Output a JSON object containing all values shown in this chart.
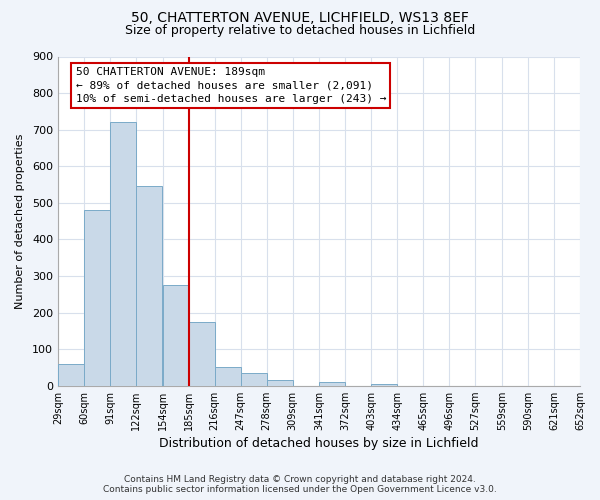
{
  "title1": "50, CHATTERTON AVENUE, LICHFIELD, WS13 8EF",
  "title2": "Size of property relative to detached houses in Lichfield",
  "xlabel": "Distribution of detached houses by size in Lichfield",
  "ylabel": "Number of detached properties",
  "footnote1": "Contains HM Land Registry data © Crown copyright and database right 2024.",
  "footnote2": "Contains public sector information licensed under the Open Government Licence v3.0.",
  "bar_left_edges": [
    29,
    60,
    91,
    122,
    154,
    185,
    216,
    247,
    278,
    309,
    341,
    372,
    403,
    434,
    465,
    496,
    527,
    559,
    590,
    621
  ],
  "bar_heights": [
    60,
    480,
    720,
    545,
    275,
    175,
    50,
    35,
    15,
    0,
    10,
    0,
    5,
    0,
    0,
    0,
    0,
    0,
    0,
    0
  ],
  "bin_width": 31,
  "bar_color": "#c9d9e8",
  "bar_edgecolor": "#7aaac8",
  "xtick_labels": [
    "29sqm",
    "60sqm",
    "91sqm",
    "122sqm",
    "154sqm",
    "185sqm",
    "216sqm",
    "247sqm",
    "278sqm",
    "309sqm",
    "341sqm",
    "372sqm",
    "403sqm",
    "434sqm",
    "465sqm",
    "496sqm",
    "527sqm",
    "559sqm",
    "590sqm",
    "621sqm",
    "652sqm"
  ],
  "ylim": [
    0,
    900
  ],
  "yticks": [
    0,
    100,
    200,
    300,
    400,
    500,
    600,
    700,
    800,
    900
  ],
  "vline_x": 185,
  "vline_color": "#cc0000",
  "annotation_text": "50 CHATTERTON AVENUE: 189sqm\n← 89% of detached houses are smaller (2,091)\n10% of semi-detached houses are larger (243) →",
  "box_color": "#cc0000",
  "grid_color": "#d8e0ec",
  "plot_bg_color": "#ffffff",
  "fig_bg_color": "#f0f4fa",
  "title1_fontsize": 10,
  "title2_fontsize": 9,
  "annotation_fontsize": 8,
  "xlabel_fontsize": 9,
  "ylabel_fontsize": 8,
  "footnote_fontsize": 6.5
}
